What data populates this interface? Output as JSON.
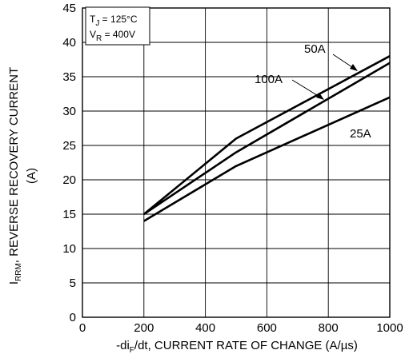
{
  "chart_data": {
    "type": "line",
    "title": "",
    "xlabel": {
      "prefix": "-di",
      "sub": "F",
      "suffix": "/dt, CURRENT RATE OF CHANGE (A/µs)"
    },
    "ylabel": {
      "line1_prefix": "I",
      "line1_sub": "RRM",
      "line1_suffix": ", REVERSE RECOVERY CURRENT",
      "line2": "(A)"
    },
    "xlim": [
      0,
      1000
    ],
    "ylim": [
      0,
      45
    ],
    "xticks": [
      0,
      200,
      400,
      600,
      800,
      1000
    ],
    "yticks": [
      0,
      5,
      10,
      15,
      20,
      25,
      30,
      35,
      40,
      45
    ],
    "grid": true,
    "series": [
      {
        "name": "50A",
        "x": [
          200,
          500,
          1000
        ],
        "y": [
          15,
          26,
          38
        ]
      },
      {
        "name": "100A",
        "x": [
          200,
          500,
          1000
        ],
        "y": [
          15,
          24,
          37
        ]
      },
      {
        "name": "25A",
        "x": [
          200,
          500,
          1000
        ],
        "y": [
          14,
          22,
          32
        ]
      }
    ],
    "annotation": {
      "tj_prefix": "T",
      "tj_sub": "J",
      "tj_suffix": " = 125°C",
      "vr_prefix": "V",
      "vr_sub": "R",
      "vr_suffix": " = 400V"
    }
  }
}
